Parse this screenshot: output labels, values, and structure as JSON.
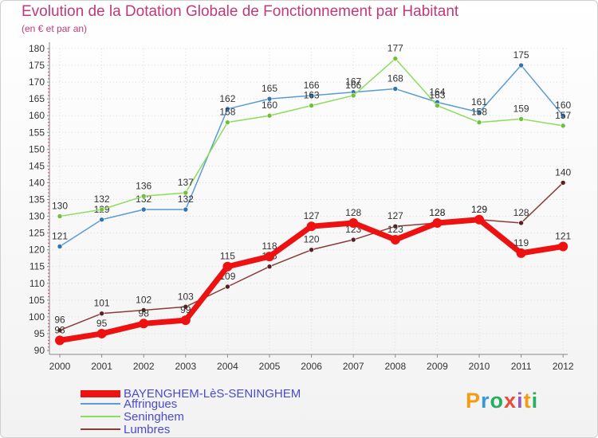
{
  "chart_data": {
    "type": "line",
    "title": "Evolution de la Dotation Globale de Fonctionnement par Habitant",
    "subtitle": "(en € et par an)",
    "xlabel": "",
    "ylabel": "",
    "ylim": [
      90,
      180
    ],
    "yticks": [
      90,
      95,
      100,
      105,
      110,
      115,
      120,
      125,
      130,
      135,
      140,
      145,
      150,
      155,
      160,
      165,
      170,
      175,
      180
    ],
    "categories": [
      "2000",
      "2001",
      "2002",
      "2003",
      "2004",
      "2005",
      "2006",
      "2007",
      "2008",
      "2009",
      "2010",
      "2011",
      "2012"
    ],
    "series": [
      {
        "name": "Affringues",
        "color": "#5b9bd5",
        "marker": "#2f75b5",
        "values": [
          121,
          129,
          132,
          132,
          162,
          165,
          166,
          167,
          168,
          164,
          161,
          175,
          160
        ]
      },
      {
        "name": "Seninghem",
        "color": "#8ddc5a",
        "marker": "#70c040",
        "values": [
          130,
          132,
          136,
          137,
          158,
          160,
          163,
          166,
          177,
          163,
          158,
          159,
          157
        ]
      },
      {
        "name": "Lumbres",
        "color": "#8b3a3a",
        "marker": "#5a1f1f",
        "values": [
          96,
          101,
          102,
          103,
          109,
          115,
          120,
          123,
          127,
          128,
          129,
          128,
          140
        ]
      },
      {
        "name": "BAYENGHEM-LèS-SENINGHEM",
        "color": "#ee1111",
        "marker": "#ee1111",
        "values": [
          93,
          95,
          98,
          99,
          115,
          118,
          127,
          128,
          123,
          128,
          129,
          119,
          121
        ]
      }
    ],
    "labels": [
      {
        "series": "Affringues",
        "values": [
          "121",
          "129",
          "132",
          "132",
          "162",
          "165",
          "166",
          "167",
          "168",
          "164",
          "161",
          "175",
          "160"
        ]
      },
      {
        "series": "Seninghem",
        "values": [
          "130",
          "132",
          "136",
          "137",
          "158",
          "160",
          "163",
          "166",
          "177",
          "163",
          "158",
          "159",
          "157"
        ]
      },
      {
        "series": "Lumbres",
        "values": [
          "96",
          "101",
          "102",
          "103",
          "109",
          "115",
          "120",
          "123",
          "127",
          "128",
          "129",
          "128",
          "140"
        ]
      },
      {
        "series": "BAYENGHEM-LèS-SENINGHEM",
        "values": [
          "93",
          "95",
          "98",
          "99",
          "115",
          "118",
          "127",
          "128",
          "123",
          "128",
          "129",
          "119",
          "121"
        ]
      }
    ],
    "legend": [
      "BAYENGHEM-LèS-SENINGHEM",
      "Affringues",
      "Seninghem",
      "Lumbres"
    ],
    "legend_position": "bottom-left"
  },
  "brand": {
    "letters": [
      "P",
      "r",
      "o",
      "x",
      "i",
      "t",
      "i"
    ],
    "colors": [
      "#f39c12",
      "#3498db",
      "#27ae60",
      "#e74c3c",
      "#9b59b6",
      "#f39c12",
      "#27ae60"
    ]
  }
}
